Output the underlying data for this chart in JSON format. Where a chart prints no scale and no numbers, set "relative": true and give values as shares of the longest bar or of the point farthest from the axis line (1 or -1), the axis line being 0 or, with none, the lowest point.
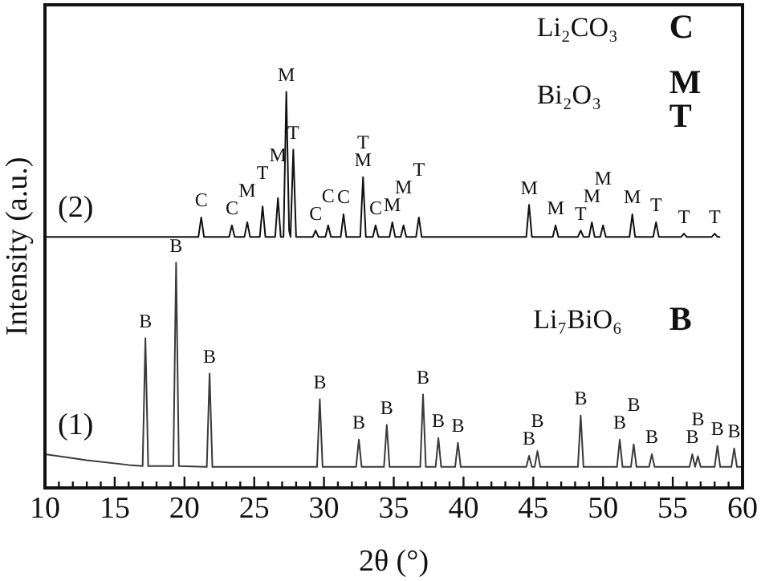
{
  "chart_data": {
    "type": "line",
    "xlabel": "2θ (°)",
    "ylabel": "Intensity (a.u.)",
    "relative": true,
    "grid": false,
    "legend": false,
    "marker": "none",
    "line_style": "solid",
    "xlim": [
      10,
      60
    ],
    "xticks": [
      10,
      {
        "value": 11,
        "label": null
      },
      {
        "value": 12,
        "label": null
      },
      {
        "value": 13,
        "label": null
      },
      {
        "value": 14,
        "label": null
      },
      15,
      {
        "value": 16,
        "label": null
      },
      {
        "value": 17,
        "label": null
      },
      {
        "value": 18,
        "label": null
      },
      {
        "value": 19,
        "label": null
      },
      20,
      {
        "value": 21,
        "label": null
      },
      {
        "value": 22,
        "label": null
      },
      {
        "value": 23,
        "label": null
      },
      {
        "value": 24,
        "label": null
      },
      25,
      {
        "value": 26,
        "label": null
      },
      {
        "value": 27,
        "label": null
      },
      {
        "value": 28,
        "label": null
      },
      {
        "value": 29,
        "label": null
      },
      30,
      {
        "value": 31,
        "label": null
      },
      {
        "value": 32,
        "label": null
      },
      {
        "value": 33,
        "label": null
      },
      {
        "value": 34,
        "label": null
      },
      35,
      {
        "value": 36,
        "label": null
      },
      {
        "value": 37,
        "label": null
      },
      {
        "value": 38,
        "label": null
      },
      {
        "value": 39,
        "label": null
      },
      40,
      {
        "value": 41,
        "label": null
      },
      {
        "value": 42,
        "label": null
      },
      {
        "value": 43,
        "label": null
      },
      {
        "value": 44,
        "label": null
      },
      45,
      {
        "value": 46,
        "label": null
      },
      {
        "value": 47,
        "label": null
      },
      {
        "value": 48,
        "label": null
      },
      {
        "value": 49,
        "label": null
      },
      50,
      {
        "value": 51,
        "label": null
      },
      {
        "value": 52,
        "label": null
      },
      {
        "value": 53,
        "label": null
      },
      {
        "value": 54,
        "label": null
      },
      55,
      {
        "value": 56,
        "label": null
      },
      {
        "value": 57,
        "label": null
      },
      {
        "value": 58,
        "label": null
      },
      {
        "value": 59,
        "label": null
      },
      60
    ],
    "series": [
      {
        "name": "(1)",
        "color": "#3a3a3a",
        "x": [
          10,
          13,
          16,
          17.0,
          17.2,
          17.4,
          19.2,
          19.4,
          19.6,
          21.6,
          21.8,
          22.0,
          29.5,
          29.7,
          29.9,
          32.3,
          32.5,
          32.7,
          34.3,
          34.5,
          34.7,
          36.9,
          37.1,
          37.3,
          38.0,
          38.2,
          38.4,
          39.4,
          39.6,
          39.8,
          44.5,
          44.7,
          44.9,
          45.1,
          45.3,
          45.5,
          48.2,
          48.4,
          48.6,
          51.0,
          51.2,
          51.4,
          52.0,
          52.2,
          52.4,
          53.3,
          53.5,
          53.7,
          56.2,
          56.4,
          56.6,
          56.8,
          57.0,
          58.0,
          58.2,
          58.4,
          59.2,
          59.4,
          59.6,
          60
        ],
        "values": [
          0.085,
          0.07,
          0.058,
          0.055,
          0.378,
          0.055,
          0.055,
          0.569,
          0.055,
          0.053,
          0.289,
          0.053,
          0.053,
          0.224,
          0.053,
          0.053,
          0.122,
          0.053,
          0.053,
          0.159,
          0.053,
          0.053,
          0.236,
          0.053,
          0.053,
          0.126,
          0.053,
          0.053,
          0.114,
          0.053,
          0.053,
          0.081,
          0.053,
          0.053,
          0.093,
          0.053,
          0.053,
          0.183,
          0.053,
          0.053,
          0.122,
          0.053,
          0.053,
          0.11,
          0.053,
          0.053,
          0.085,
          0.053,
          0.053,
          0.085,
          0.053,
          0.08,
          0.053,
          0.053,
          0.106,
          0.053,
          0.053,
          0.1,
          0.053,
          0.053
        ]
      },
      {
        "name": "(2)",
        "color": "#111111",
        "x": [
          10,
          21.0,
          21.2,
          21.4,
          23.2,
          23.4,
          23.6,
          24.3,
          24.5,
          24.7,
          25.4,
          25.6,
          25.8,
          26.5,
          26.7,
          26.9,
          27.1,
          27.3,
          27.5,
          27.6,
          27.8,
          28.0,
          29.2,
          29.4,
          29.6,
          30.1,
          30.3,
          30.5,
          31.2,
          31.4,
          31.6,
          32.6,
          32.8,
          33.0,
          33.5,
          33.7,
          33.9,
          34.7,
          34.9,
          35.1,
          35.5,
          35.7,
          35.9,
          36.6,
          36.8,
          37.0,
          44.5,
          44.7,
          44.9,
          46.4,
          46.6,
          46.8,
          48.2,
          48.4,
          48.6,
          49.0,
          49.2,
          49.4,
          49.8,
          50.0,
          50.2,
          51.9,
          52.1,
          52.3,
          53.6,
          53.8,
          54.0,
          55.6,
          55.8,
          56.0,
          57.8,
          58.0,
          58.2,
          58.4
        ],
        "values": [
          0.634,
          0.634,
          0.683,
          0.634,
          0.634,
          0.663,
          0.634,
          0.634,
          0.671,
          0.634,
          0.634,
          0.711,
          0.634,
          0.634,
          0.732,
          0.634,
          0.634,
          1.0,
          0.65,
          0.634,
          0.854,
          0.634,
          0.634,
          0.65,
          0.634,
          0.634,
          0.663,
          0.634,
          0.634,
          0.691,
          0.634,
          0.634,
          0.785,
          0.634,
          0.634,
          0.663,
          0.634,
          0.634,
          0.671,
          0.634,
          0.634,
          0.663,
          0.634,
          0.634,
          0.683,
          0.634,
          0.634,
          0.715,
          0.634,
          0.634,
          0.663,
          0.634,
          0.634,
          0.65,
          0.634,
          0.634,
          0.671,
          0.634,
          0.634,
          0.663,
          0.634,
          0.634,
          0.691,
          0.634,
          0.634,
          0.671,
          0.634,
          0.634,
          0.642,
          0.634,
          0.634,
          0.642,
          0.634,
          0.634
        ]
      }
    ],
    "annotations": [
      "Li₂CO₃",
      "C",
      "Bi₂O₃",
      "M",
      "T",
      "Li₇BiO₆",
      "B",
      {
        "text": "C",
        "x": 21.2,
        "y": 0.683
      },
      {
        "text": "C",
        "x": 23.4,
        "y": 0.663
      },
      {
        "text": "M",
        "x": 24.5,
        "y": 0.671
      },
      {
        "text": "T",
        "x": 25.6,
        "y": 0.711
      },
      {
        "text": "M",
        "x": 26.7,
        "y": 0.732
      },
      {
        "text": "M",
        "x": 27.3,
        "y": 1.0
      },
      {
        "text": "T",
        "x": 27.8,
        "y": 0.854
      },
      {
        "text": "C",
        "x": 29.4,
        "y": 0.65
      },
      {
        "text": "C",
        "x": 30.3,
        "y": 0.663
      },
      {
        "text": "C",
        "x": 31.4,
        "y": 0.691
      },
      {
        "text": "M",
        "x": 32.8,
        "y": 0.785
      },
      {
        "text": "T",
        "x": 32.8,
        "y": 0.785
      },
      {
        "text": "C",
        "x": 33.7,
        "y": 0.663
      },
      {
        "text": "M",
        "x": 34.9,
        "y": 0.671
      },
      {
        "text": "M",
        "x": 35.7,
        "y": 0.663
      },
      {
        "text": "T",
        "x": 36.8,
        "y": 0.683
      },
      {
        "text": "M",
        "x": 44.7,
        "y": 0.715
      },
      {
        "text": "M",
        "x": 46.6,
        "y": 0.663
      },
      {
        "text": "T",
        "x": 48.4,
        "y": 0.65
      },
      {
        "text": "M",
        "x": 49.2,
        "y": 0.671
      },
      {
        "text": "M",
        "x": 50.0,
        "y": 0.663
      },
      {
        "text": "M",
        "x": 52.1,
        "y": 0.691
      },
      {
        "text": "T",
        "x": 53.8,
        "y": 0.671
      },
      {
        "text": "T",
        "x": 55.8,
        "y": 0.642
      },
      {
        "text": "T",
        "x": 58.0,
        "y": 0.642
      },
      {
        "text": "B",
        "x": 17.2,
        "y": 0.378
      },
      {
        "text": "B",
        "x": 19.4,
        "y": 0.569
      },
      {
        "text": "B",
        "x": 21.8,
        "y": 0.289
      },
      {
        "text": "B",
        "x": 29.7,
        "y": 0.224
      },
      {
        "text": "B",
        "x": 32.5,
        "y": 0.122
      },
      {
        "text": "B",
        "x": 34.5,
        "y": 0.159
      },
      {
        "text": "B",
        "x": 37.1,
        "y": 0.236
      },
      {
        "text": "B",
        "x": 38.2,
        "y": 0.126
      },
      {
        "text": "B",
        "x": 39.6,
        "y": 0.114
      },
      {
        "text": "B",
        "x": 44.7,
        "y": 0.081
      },
      {
        "text": "B",
        "x": 45.3,
        "y": 0.093
      },
      {
        "text": "B",
        "x": 48.4,
        "y": 0.183
      },
      {
        "text": "B",
        "x": 51.2,
        "y": 0.122
      },
      {
        "text": "B",
        "x": 52.2,
        "y": 0.11
      },
      {
        "text": "B",
        "x": 53.5,
        "y": 0.085
      },
      {
        "text": "B",
        "x": 56.4,
        "y": 0.085
      },
      {
        "text": "B",
        "x": 56.8,
        "y": 0.08
      },
      {
        "text": "B",
        "x": 58.2,
        "y": 0.106
      },
      {
        "text": "B",
        "x": 59.4,
        "y": 0.1
      }
    ]
  }
}
